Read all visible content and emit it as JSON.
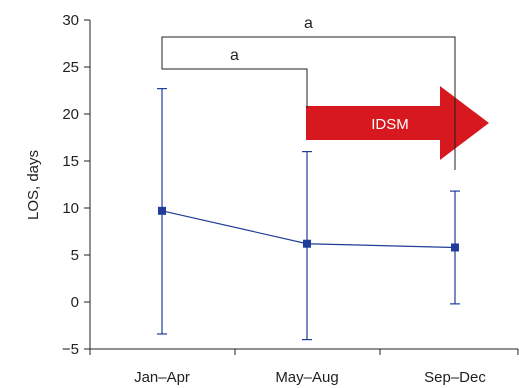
{
  "chart_data": {
    "type": "line",
    "title": "",
    "xlabel": "",
    "ylabel": "LOS, days",
    "ylim": [
      -5,
      30
    ],
    "yticks": [
      -5,
      0,
      5,
      10,
      15,
      20,
      25,
      30
    ],
    "ytick_labels": [
      "−5",
      "0",
      "5",
      "10",
      "15",
      "20",
      "25",
      "30"
    ],
    "categories": [
      "Jan–Apr",
      "May–Aug",
      "Sep–Dec"
    ],
    "series": [
      {
        "values": [
          9.7,
          6.2,
          5.8
        ],
        "error_upper": [
          22.7,
          16.0,
          11.8
        ],
        "error_lower": [
          -3.4,
          -4.0,
          -0.2
        ],
        "color": "#1f3d99"
      }
    ],
    "brackets": [
      {
        "from": 0,
        "to": 2,
        "label": "a"
      },
      {
        "from": 0,
        "to": 1,
        "label": "a"
      }
    ],
    "arrow_annotation": {
      "label": "IDSM",
      "color": "#d7191f",
      "from_category": 1,
      "points_right": true
    },
    "grid": false,
    "legend": "none"
  }
}
